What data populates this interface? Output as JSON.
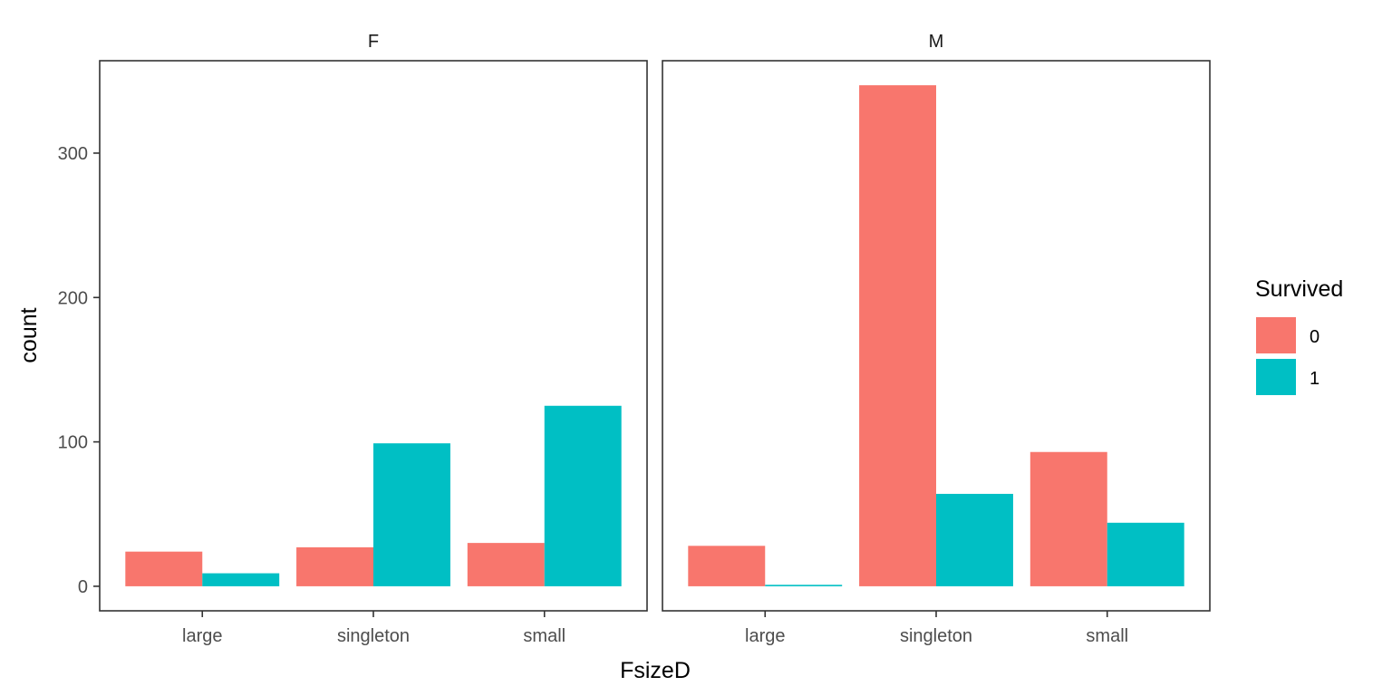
{
  "chart_data": {
    "type": "bar",
    "position": "dodge",
    "facet_variable": "Sex",
    "panels": [
      {
        "label": "F",
        "categories": [
          "large",
          "singleton",
          "small"
        ],
        "series": [
          {
            "name": "0",
            "values": [
              24,
              27,
              30
            ]
          },
          {
            "name": "1",
            "values": [
              9,
              99,
              125
            ]
          }
        ]
      },
      {
        "label": "M",
        "categories": [
          "large",
          "singleton",
          "small"
        ],
        "series": [
          {
            "name": "0",
            "values": [
              28,
              347,
              93
            ]
          },
          {
            "name": "1",
            "values": [
              1,
              64,
              44
            ]
          }
        ]
      }
    ],
    "xlabel": "FsizeD",
    "ylabel": "count",
    "ylim": [
      -17,
      364
    ],
    "yticks": [
      0,
      100,
      200,
      300
    ],
    "legend": {
      "title": "Survived",
      "placement": "right",
      "entries": [
        {
          "label": "0",
          "color": "#F8766D"
        },
        {
          "label": "1",
          "color": "#00BFC4"
        }
      ]
    },
    "grid": false,
    "theme": "bw-no-grid"
  }
}
